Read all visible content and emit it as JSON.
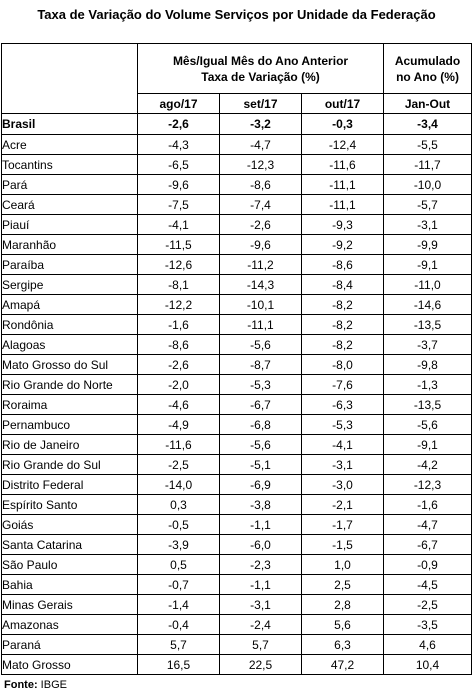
{
  "title": "Taxa de Variação do Volume Serviços por Unidade da Federação",
  "header": {
    "group_monthly": "Mês/Igual Mês do Ano Anterior Taxa de Variação (%)",
    "group_cumulative": "Acumulado no Ano (%)",
    "columns": [
      "ago/17",
      "set/17",
      "out/17",
      "Jan-Out"
    ]
  },
  "rows": [
    {
      "uf": "Brasil",
      "v": [
        "-2,6",
        "-3,2",
        "-0,3",
        "-3,4"
      ]
    },
    {
      "uf": "Acre",
      "v": [
        "-4,3",
        "-4,7",
        "-12,4",
        "-5,5"
      ]
    },
    {
      "uf": "Tocantins",
      "v": [
        "-6,5",
        "-12,3",
        "-11,6",
        "-11,7"
      ]
    },
    {
      "uf": "Pará",
      "v": [
        "-9,6",
        "-8,6",
        "-11,1",
        "-10,0"
      ]
    },
    {
      "uf": "Ceará",
      "v": [
        "-7,5",
        "-7,4",
        "-11,1",
        "-5,7"
      ]
    },
    {
      "uf": "Piauí",
      "v": [
        "-4,1",
        "-2,6",
        "-9,3",
        "-3,1"
      ]
    },
    {
      "uf": "Maranhão",
      "v": [
        "-11,5",
        "-9,6",
        "-9,2",
        "-9,9"
      ]
    },
    {
      "uf": "Paraíba",
      "v": [
        "-12,6",
        "-11,2",
        "-8,6",
        "-9,1"
      ]
    },
    {
      "uf": "Sergipe",
      "v": [
        "-8,1",
        "-14,3",
        "-8,4",
        "-11,0"
      ]
    },
    {
      "uf": "Amapá",
      "v": [
        "-12,2",
        "-10,1",
        "-8,2",
        "-14,6"
      ]
    },
    {
      "uf": "Rondônia",
      "v": [
        "-1,6",
        "-11,1",
        "-8,2",
        "-13,5"
      ]
    },
    {
      "uf": "Alagoas",
      "v": [
        "-8,6",
        "-5,6",
        "-8,2",
        "-3,7"
      ]
    },
    {
      "uf": "Mato Grosso do Sul",
      "v": [
        "-2,6",
        "-8,7",
        "-8,0",
        "-9,8"
      ]
    },
    {
      "uf": "Rio Grande do Norte",
      "v": [
        "-2,0",
        "-5,3",
        "-7,6",
        "-1,3"
      ]
    },
    {
      "uf": "Roraima",
      "v": [
        "-4,6",
        "-6,7",
        "-6,3",
        "-13,5"
      ]
    },
    {
      "uf": "Pernambuco",
      "v": [
        "-4,9",
        "-6,8",
        "-5,3",
        "-5,6"
      ]
    },
    {
      "uf": "Rio de Janeiro",
      "v": [
        "-11,6",
        "-5,6",
        "-4,1",
        "-9,1"
      ]
    },
    {
      "uf": "Rio Grande do Sul",
      "v": [
        "-2,5",
        "-5,1",
        "-3,1",
        "-4,2"
      ]
    },
    {
      "uf": "Distrito Federal",
      "v": [
        "-14,0",
        "-6,9",
        "-3,0",
        "-12,3"
      ]
    },
    {
      "uf": "Espírito Santo",
      "v": [
        "0,3",
        "-3,8",
        "-2,1",
        "-1,6"
      ]
    },
    {
      "uf": "Goiás",
      "v": [
        "-0,5",
        "-1,1",
        "-1,7",
        "-4,7"
      ]
    },
    {
      "uf": "Santa Catarina",
      "v": [
        "-3,9",
        "-6,0",
        "-1,5",
        "-6,7"
      ]
    },
    {
      "uf": "São Paulo",
      "v": [
        "0,5",
        "-2,3",
        "1,0",
        "-0,9"
      ]
    },
    {
      "uf": "Bahia",
      "v": [
        "-0,7",
        "-1,1",
        "2,5",
        "-4,5"
      ]
    },
    {
      "uf": "Minas Gerais",
      "v": [
        "-1,4",
        "-3,1",
        "2,8",
        "-2,5"
      ]
    },
    {
      "uf": "Amazonas",
      "v": [
        "-0,4",
        "-2,4",
        "5,6",
        "-3,5"
      ]
    },
    {
      "uf": "Paraná",
      "v": [
        "5,7",
        "5,7",
        "6,3",
        "4,6"
      ]
    },
    {
      "uf": "Mato Grosso",
      "v": [
        "16,5",
        "22,5",
        "47,2",
        "10,4"
      ]
    }
  ],
  "footer": {
    "source_label": "Fonte:",
    "source_value": "IBGE"
  }
}
